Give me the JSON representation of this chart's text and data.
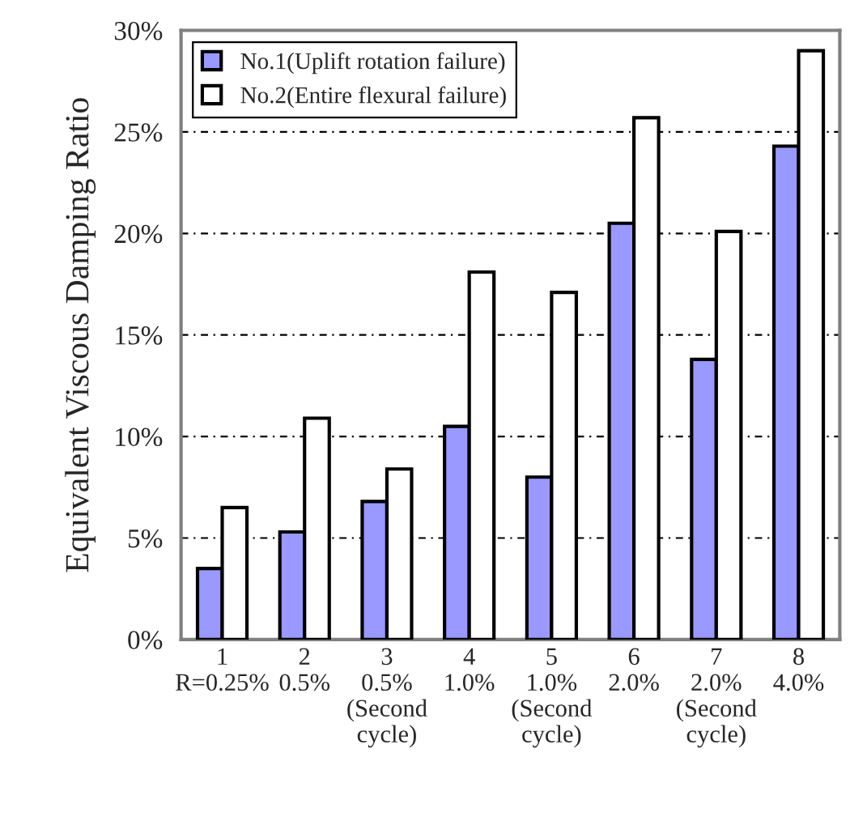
{
  "chart_data": {
    "type": "bar",
    "ylabel": "Equivalent Viscous Damping Ratio",
    "categories": [
      "1\nR=0.25%",
      "2\n0.5%",
      "3\n0.5%\n(Second\ncycle)",
      "4\n1.0%",
      "5\n1.0%\n(Second\ncycle)",
      "6\n2.0%",
      "7\n2.0%\n(Second\ncycle)",
      "8\n4.0%"
    ],
    "series": [
      {
        "name": "No.1(Uplift rotation failure)",
        "color": "#9999ff",
        "values": [
          3.5,
          5.3,
          6.8,
          10.5,
          8.0,
          20.5,
          13.8,
          24.3
        ]
      },
      {
        "name": "No.2(Entire flexural failure)",
        "color": "#ffffff",
        "values": [
          6.5,
          10.9,
          8.4,
          18.1,
          17.1,
          25.7,
          20.1,
          29.0
        ]
      }
    ],
    "ylim": [
      0,
      30
    ],
    "yticks": [
      {
        "value": 0,
        "label": "0%"
      },
      {
        "value": 5,
        "label": "5%"
      },
      {
        "value": 10,
        "label": "10%"
      },
      {
        "value": 15,
        "label": "15%"
      },
      {
        "value": 20,
        "label": "20%"
      },
      {
        "value": 25,
        "label": "25%"
      },
      {
        "value": 30,
        "label": "30%"
      }
    ],
    "grid": "y",
    "legend": "top left"
  }
}
